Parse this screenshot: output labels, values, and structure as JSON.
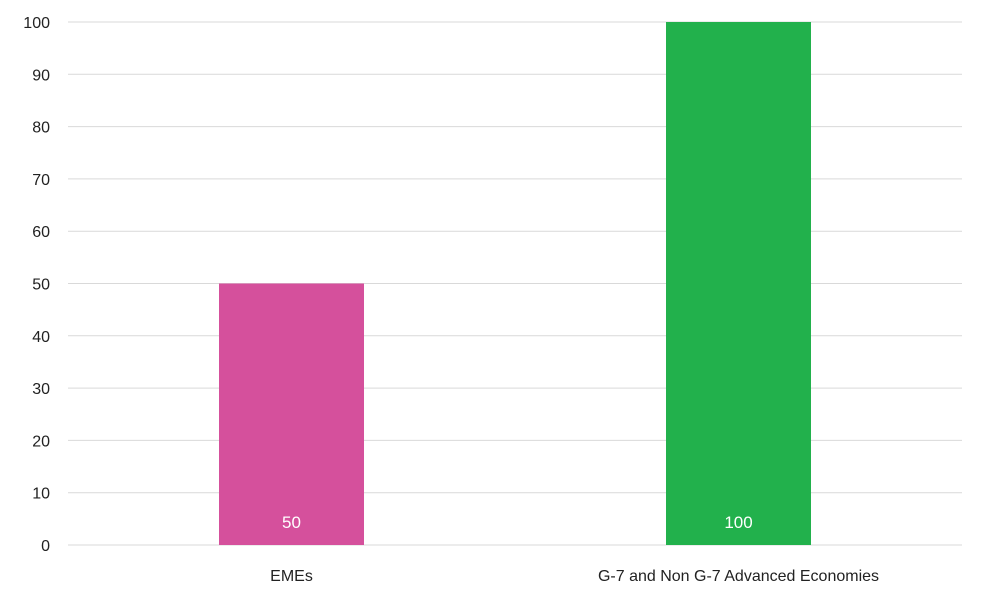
{
  "chart_data": {
    "type": "bar",
    "categories": [
      "EMEs",
      "G-7 and Non G-7 Advanced Economies"
    ],
    "values": [
      50,
      100
    ],
    "data_labels": [
      "50",
      "100"
    ],
    "colors": [
      "#d5509c",
      "#22b14c"
    ],
    "title": "",
    "xlabel": "",
    "ylabel": "",
    "ylim": [
      0,
      100
    ],
    "yticks": [
      "0",
      "10",
      "20",
      "30",
      "40",
      "50",
      "60",
      "70",
      "80",
      "90",
      "100"
    ],
    "grid": true,
    "gridline_color": "#d9d9d9",
    "legend": "none"
  }
}
